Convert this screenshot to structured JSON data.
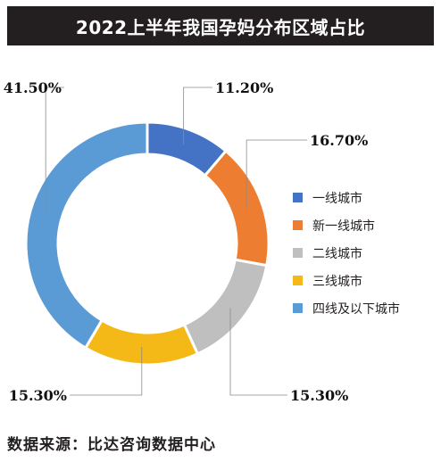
{
  "title": "2022上半年我国孕妈分布区域占比",
  "source": "数据来源：比达咨询数据中心",
  "chart_data": {
    "type": "pie",
    "style": "donut",
    "title": "2022上半年我国孕妈分布区域占比",
    "legend_position": "right",
    "categories": [
      "一线城市",
      "新一线城市",
      "二线城市",
      "三线城市",
      "四线及以下城市"
    ],
    "values": [
      11.2,
      16.7,
      15.3,
      15.3,
      41.5
    ],
    "value_labels": [
      "11.20%",
      "16.70%",
      "15.30%",
      "15.30%",
      "41.50%"
    ],
    "colors": [
      "#4472c4",
      "#ed7d31",
      "#bfbfbf",
      "#f5b917",
      "#5b9bd5"
    ]
  }
}
